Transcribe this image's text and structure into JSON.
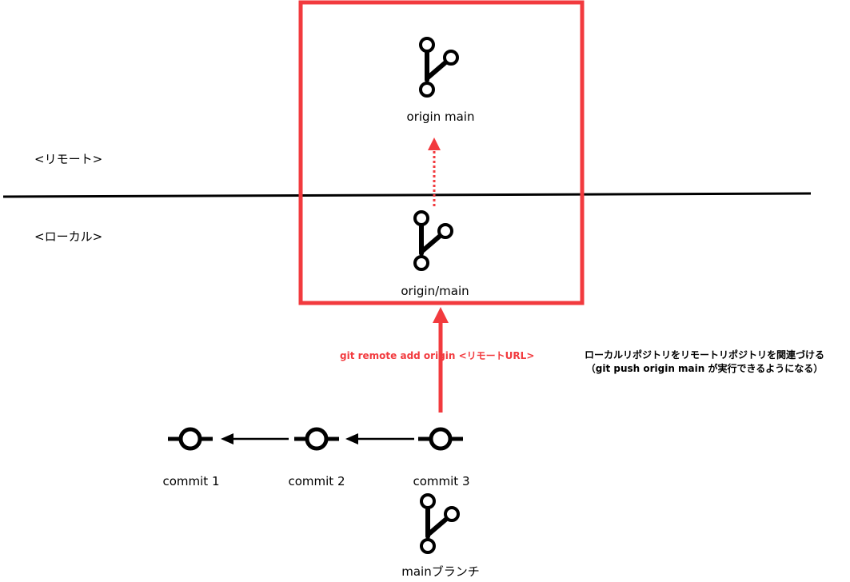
{
  "zones": {
    "remote_label": "<リモート>",
    "local_label": "<ローカル>"
  },
  "remote": {
    "branch_label": "origin main"
  },
  "local": {
    "tracking_label": "origin/main",
    "branch_label": "mainブランチ"
  },
  "commits": [
    "commit 1",
    "commit 2",
    "commit 3"
  ],
  "command": {
    "text": "git remote add origin <リモートURL>"
  },
  "note": {
    "line1": "ローカルリポジトリをリモートリポジトリを関連づける",
    "line2": "（git push origin main が実行できるようになる）"
  },
  "colors": {
    "accent": "#f23a3e",
    "line": "#000000",
    "background": "#ffffff"
  },
  "icons": {
    "branch": "git-branch-icon",
    "commit": "git-commit-icon"
  }
}
